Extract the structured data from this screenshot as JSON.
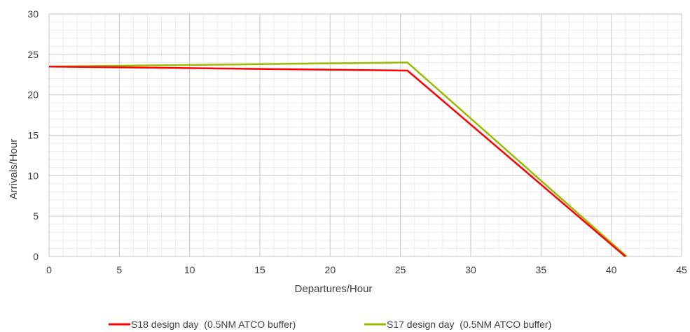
{
  "chart_data": {
    "type": "line",
    "title": "",
    "xlabel": "Departures/Hour",
    "ylabel": "Arrivals/Hour",
    "xlim": [
      0,
      45
    ],
    "ylim": [
      0,
      30
    ],
    "x_ticks": [
      0,
      5,
      10,
      15,
      20,
      25,
      30,
      35,
      40,
      45
    ],
    "y_ticks": [
      0,
      5,
      10,
      15,
      20,
      25,
      30
    ],
    "minor_x_step": 1,
    "minor_y_step": 1,
    "grid": true,
    "legend_position": "bottom",
    "series": [
      {
        "name": "S18 design day  (0.5NM ATCO buffer)",
        "color": "#ff0000",
        "points": [
          [
            0,
            23.5
          ],
          [
            25.5,
            23
          ],
          [
            41,
            0
          ]
        ]
      },
      {
        "name": "S17 design day  (0.5NM ATCO buffer)",
        "color": "#99bb00",
        "points": [
          [
            0,
            23.5
          ],
          [
            25.5,
            24
          ],
          [
            41.1,
            0
          ]
        ]
      }
    ]
  }
}
